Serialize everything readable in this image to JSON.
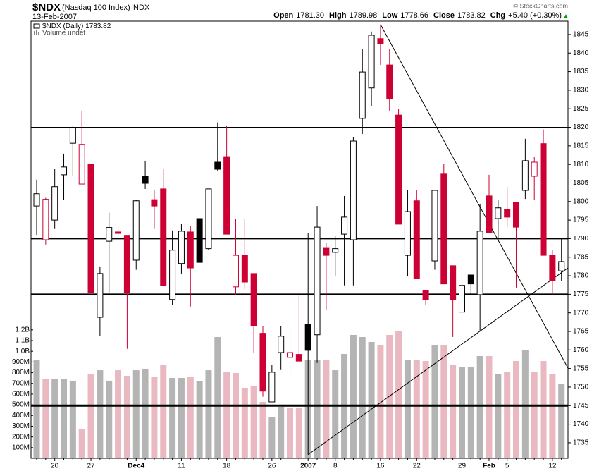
{
  "chart_data": {
    "type": "candlestick",
    "title": "$NDX",
    "subtitle": "(Nasdaq 100 Index)",
    "exchange": "INDX",
    "date": "13-Feb-2007",
    "copyright": "© StockCharts.com",
    "quote": [
      {
        "label": "Open",
        "value": "1781.30"
      },
      {
        "label": "High",
        "value": "1789.98"
      },
      {
        "label": "Low",
        "value": "1778.66"
      },
      {
        "label": "Close",
        "value": "1783.82"
      },
      {
        "label": "Chg",
        "value": "+5.40 (+0.30%)"
      }
    ],
    "categories": [
      null,
      null,
      "20",
      null,
      null,
      null,
      "27",
      null,
      null,
      null,
      null,
      "Dec4",
      null,
      null,
      null,
      null,
      "11",
      null,
      null,
      null,
      null,
      "18",
      null,
      null,
      null,
      null,
      "26",
      null,
      null,
      null,
      "2007",
      null,
      null,
      "8",
      null,
      null,
      null,
      null,
      "16",
      null,
      null,
      null,
      "22",
      null,
      null,
      null,
      null,
      "29",
      null,
      null,
      "Feb",
      null,
      "5",
      null,
      null,
      null,
      null,
      "12",
      null
    ],
    "series": [
      {
        "name": "$NDX (Daily)",
        "last_label": "1783.82",
        "open": [
          1798.8,
          1789.7,
          1795.0,
          1807.2,
          1815.7,
          1804.7,
          1810.0,
          1768.8,
          1789.3,
          1791.8,
          1790.9,
          1784.2,
          1806.8,
          1800.5,
          1803.4,
          1773.6,
          1783.3,
          1791.8,
          1795.4,
          1787.3,
          1810.6,
          1812.1,
          1777.0,
          1785.5,
          1780.6,
          1764.5,
          1746.0,
          1759.3,
          1758.0,
          1758.8,
          1766.9,
          1764.1,
          1787.4,
          1786.3,
          1791.2,
          1789.7,
          1822.4,
          1830.6,
          1843.9,
          1836.8,
          1823.3,
          1785.5,
          1800.2,
          1776.0,
          1784.0,
          1807.4,
          1782.7,
          1770.2,
          1780.2,
          1774.9,
          1801.5,
          1795.4,
          1797.9,
          1799.7,
          1803.0,
          1806.8,
          1815.6,
          1785.5,
          1781.3
        ],
        "high": [
          1805.9,
          1801.0,
          1808.7,
          1812.9,
          1820.5,
          1824.5,
          1810.0,
          1782.5,
          1797.0,
          1793.5,
          1790.9,
          1800.5,
          1811.0,
          1803.0,
          1808.7,
          1792.2,
          1793.9,
          1793.5,
          1795.4,
          1803.4,
          1821.3,
          1820.5,
          1795.4,
          1795.4,
          1780.6,
          1766.4,
          1755.9,
          1766.4,
          1766.0,
          1775.5,
          1791.6,
          1798.8,
          1788.8,
          1790.7,
          1801.5,
          1817.3,
          1841.0,
          1845.8,
          1847.7,
          1841.0,
          1824.9,
          1803.0,
          1803.0,
          1776.0,
          1803.0,
          1810.2,
          1782.7,
          1780.2,
          1780.2,
          1799.2,
          1807.2,
          1800.5,
          1803.9,
          1799.7,
          1816.9,
          1812.1,
          1819.4,
          1786.9,
          1789.98
        ],
        "low": [
          1791.0,
          1788.4,
          1792.6,
          1800.5,
          1806.8,
          1804.7,
          1775.5,
          1763.7,
          1775.5,
          1790.5,
          1760.3,
          1781.6,
          1803.4,
          1792.6,
          1777.4,
          1772.2,
          1780.6,
          1771.7,
          1783.6,
          1786.9,
          1808.2,
          1791.2,
          1774.9,
          1776.4,
          1759.3,
          1747.4,
          1746.0,
          1754.6,
          1752.7,
          1757.0,
          1731.8,
          1756.5,
          1770.7,
          1779.8,
          1777.4,
          1777.4,
          1818.2,
          1825.8,
          1836.8,
          1824.5,
          1793.9,
          1779.8,
          1779.3,
          1772.2,
          1781.6,
          1777.8,
          1763.5,
          1767.9,
          1774.9,
          1765.0,
          1791.6,
          1789.3,
          1793.1,
          1776.8,
          1800.7,
          1800.5,
          1785.5,
          1774.9,
          1778.66
        ],
        "close": [
          1802.1,
          1800.6,
          1804.0,
          1809.3,
          1819.9,
          1815.4,
          1775.5,
          1780.6,
          1793.0,
          1791.4,
          1775.5,
          1800.2,
          1804.9,
          1798.8,
          1777.4,
          1786.9,
          1792.0,
          1782.1,
          1783.6,
          1803.4,
          1808.7,
          1791.2,
          1785.5,
          1778.3,
          1766.5,
          1748.9,
          1754.0,
          1763.7,
          1759.3,
          1757.0,
          1759.9,
          1793.1,
          1785.5,
          1787.3,
          1795.8,
          1816.3,
          1834.9,
          1844.8,
          1842.5,
          1827.7,
          1793.9,
          1797.3,
          1779.3,
          1773.6,
          1803.0,
          1777.8,
          1773.6,
          1777.4,
          1777.8,
          1792.0,
          1791.6,
          1798.3,
          1795.8,
          1793.1,
          1811.0,
          1810.6,
          1785.5,
          1778.7,
          1783.82
        ],
        "colors": [
          "#000000",
          "#cc0033",
          "#000000",
          "#000000",
          "#000000",
          "#cc0033",
          "#cc0033",
          "#000000",
          "#000000",
          "#cc0033",
          "#cc0033",
          "#000000",
          "#000000",
          "#cc0033",
          "#cc0033",
          "#000000",
          "#000000",
          "#cc0033",
          "#000000",
          "#000000",
          "#000000",
          "#cc0033",
          "#cc0033",
          "#cc0033",
          "#cc0033",
          "#cc0033",
          "#000000",
          "#000000",
          "#cc0033",
          "#cc0033",
          "#000000",
          "#000000",
          "#cc0033",
          "#000000",
          "#000000",
          "#000000",
          "#000000",
          "#000000",
          "#cc0033",
          "#cc0033",
          "#cc0033",
          "#000000",
          "#cc0033",
          "#cc0033",
          "#000000",
          "#cc0033",
          "#cc0033",
          "#000000",
          "#000000",
          "#000000",
          "#cc0033",
          "#000000",
          "#cc0033",
          "#cc0033",
          "#000000",
          "#cc0033",
          "#cc0033",
          "#cc0033",
          "#000000"
        ]
      },
      {
        "name": "Volume undef",
        "axis": "y2",
        "values": [
          922,
          744,
          744,
          738,
          725,
          277,
          784,
          823,
          725,
          823,
          771,
          823,
          837,
          758,
          876,
          751,
          751,
          758,
          718,
          823,
          1133,
          810,
          797,
          659,
          672,
          527,
          382,
          481,
          474,
          474,
          922,
          922,
          916,
          823,
          975,
          1153,
          1133,
          1087,
          1054,
          1153,
          1186,
          922,
          922,
          909,
          1054,
          1054,
          876,
          856,
          856,
          955,
          955,
          790,
          804,
          909,
          1008,
          804,
          909,
          790,
          692
        ],
        "colors": [
          "#b4b4b4",
          "#e9b8c0",
          "#b4b4b4",
          "#b4b4b4",
          "#b4b4b4",
          "#e9b8c0",
          "#e9b8c0",
          "#b4b4b4",
          "#b4b4b4",
          "#e9b8c0",
          "#e9b8c0",
          "#b4b4b4",
          "#b4b4b4",
          "#e9b8c0",
          "#e9b8c0",
          "#b4b4b4",
          "#b4b4b4",
          "#e9b8c0",
          "#b4b4b4",
          "#b4b4b4",
          "#b4b4b4",
          "#e9b8c0",
          "#e9b8c0",
          "#e9b8c0",
          "#e9b8c0",
          "#e9b8c0",
          "#b4b4b4",
          "#b4b4b4",
          "#e9b8c0",
          "#e9b8c0",
          "#b4b4b4",
          "#b4b4b4",
          "#e9b8c0",
          "#b4b4b4",
          "#b4b4b4",
          "#b4b4b4",
          "#b4b4b4",
          "#b4b4b4",
          "#e9b8c0",
          "#e9b8c0",
          "#e9b8c0",
          "#b4b4b4",
          "#e9b8c0",
          "#e9b8c0",
          "#b4b4b4",
          "#e9b8c0",
          "#e9b8c0",
          "#b4b4b4",
          "#b4b4b4",
          "#b4b4b4",
          "#e9b8c0",
          "#b4b4b4",
          "#e9b8c0",
          "#e9b8c0",
          "#b4b4b4",
          "#e9b8c0",
          "#e9b8c0",
          "#e9b8c0",
          "#b4b4b4"
        ]
      }
    ],
    "ylim": [
      1730.8,
      1848.6
    ],
    "yticks": [
      1735,
      1740,
      1745,
      1750,
      1755,
      1760,
      1765,
      1770,
      1775,
      1780,
      1785,
      1790,
      1795,
      1800,
      1805,
      1810,
      1815,
      1820,
      1825,
      1830,
      1835,
      1840,
      1845
    ],
    "y2lim": [
      0,
      4084
    ],
    "y2ticks": [
      {
        "value": 100,
        "label": "100M"
      },
      {
        "value": 200,
        "label": "200M"
      },
      {
        "value": 300,
        "label": "300M"
      },
      {
        "value": 400,
        "label": "400M"
      },
      {
        "value": 500,
        "label": "500M"
      },
      {
        "value": 600,
        "label": "600M"
      },
      {
        "value": 700,
        "label": "700M"
      },
      {
        "value": 800,
        "label": "800M"
      },
      {
        "value": 900,
        "label": "900M"
      },
      {
        "value": 1000,
        "label": "1.0B"
      },
      {
        "value": 1100,
        "label": "1.1B"
      },
      {
        "value": 1200,
        "label": "1.2B"
      }
    ],
    "hlines": [
      {
        "value": 1820,
        "width": 1
      },
      {
        "value": 1790,
        "width": 2
      },
      {
        "value": 1775,
        "width": 2
      },
      {
        "value": 1745,
        "width": 3
      }
    ],
    "trendlines": [
      {
        "start": 38,
        "from": 1847.7,
        "to": 1755.1
      },
      {
        "start": 30,
        "from": 1731.8,
        "to": 1782.1
      }
    ]
  }
}
